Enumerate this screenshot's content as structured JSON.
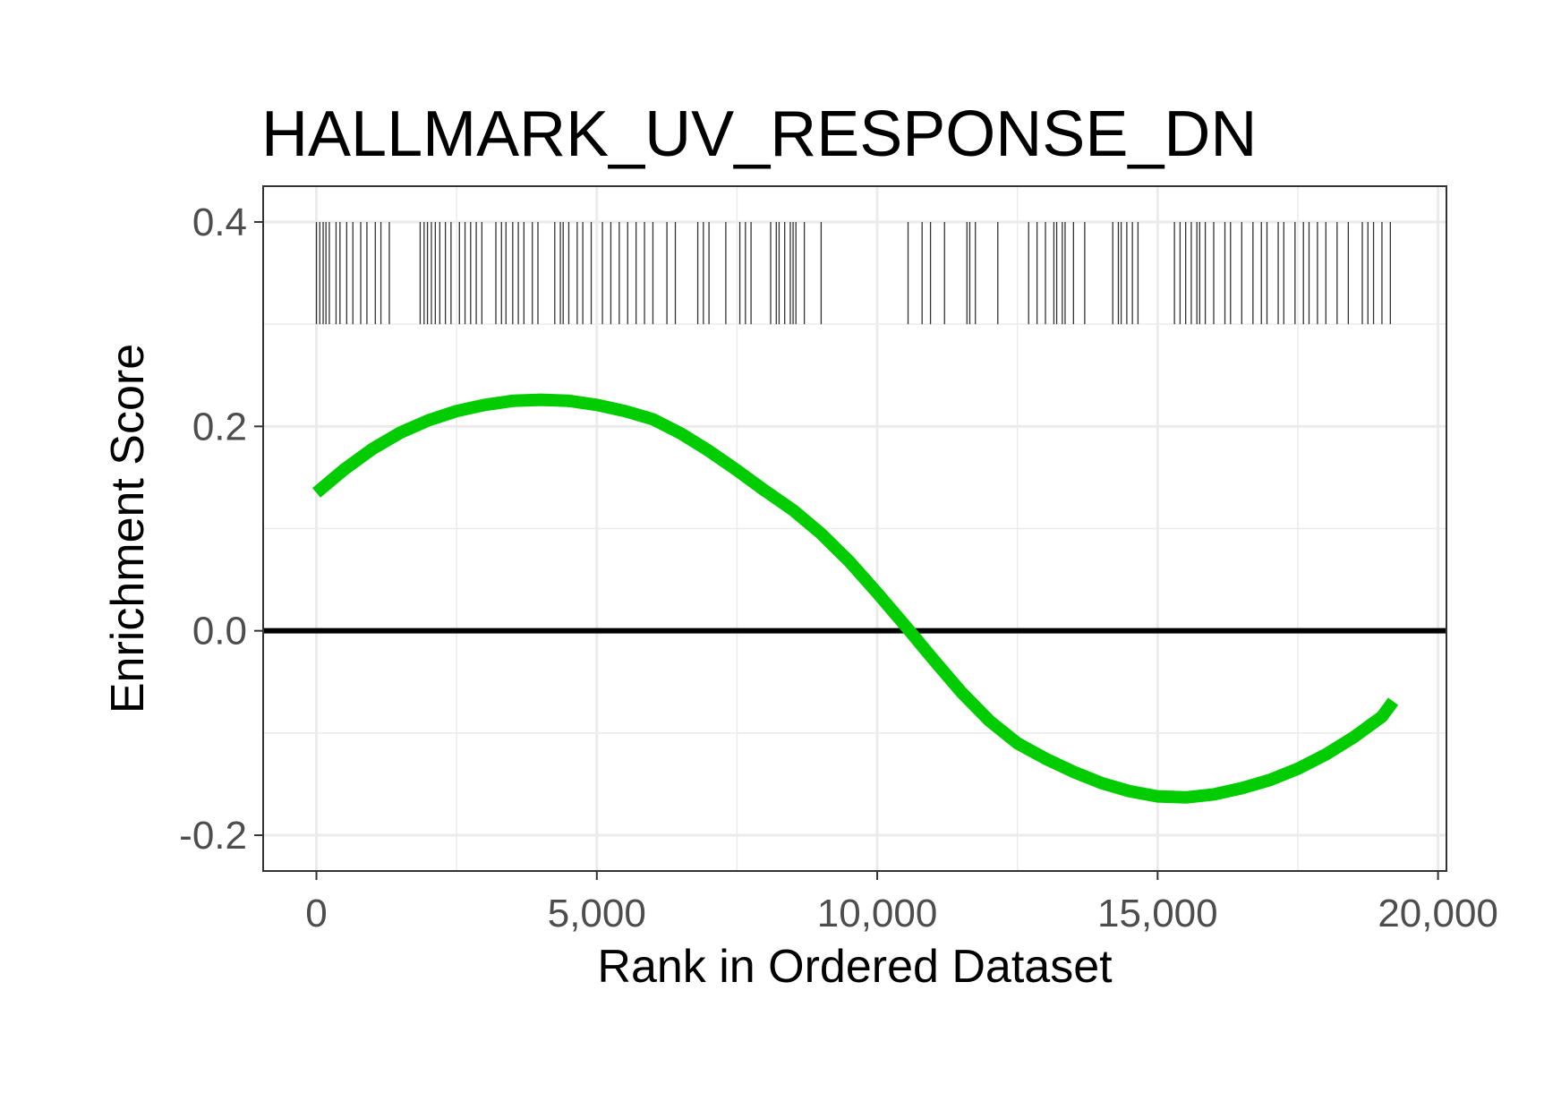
{
  "chart_data": {
    "type": "line",
    "title": "HALLMARK_UV_RESPONSE_DN",
    "xlabel": "Rank in Ordered Dataset",
    "ylabel": "Enrichment Score",
    "xlim": [
      -950,
      20150
    ],
    "ylim": [
      -0.235,
      0.435
    ],
    "x_ticks": [
      0,
      5000,
      10000,
      15000,
      20000
    ],
    "x_tick_labels": [
      "0",
      "5,000",
      "10,000",
      "15,000",
      "20,000"
    ],
    "y_ticks": [
      -0.2,
      0.0,
      0.2,
      0.4
    ],
    "y_tick_labels": [
      "-0.2",
      "0.0",
      "0.2",
      "0.4"
    ],
    "grid": true,
    "legend": "none",
    "reference_line_y": 0,
    "colors": {
      "curve": "#00cc00",
      "reference_line": "#000000",
      "gene_ticks": "#333333",
      "grid": "#ebebeb",
      "panel_border": "#333333"
    },
    "series": [
      {
        "x": [
          0,
          500,
          1000,
          1500,
          2000,
          2500,
          3000,
          3500,
          4000,
          4500,
          5000,
          5500,
          6000,
          6500,
          7000,
          7500,
          8000,
          8500,
          9000,
          9500,
          10000,
          10500,
          11000,
          11500,
          12000,
          12500,
          13000,
          13500,
          14000,
          14500,
          15000,
          15500,
          16000,
          16500,
          17000,
          17500,
          18000,
          18500,
          19000,
          19200
        ],
        "y": [
          0.135,
          0.158,
          0.178,
          0.194,
          0.206,
          0.215,
          0.221,
          0.225,
          0.226,
          0.225,
          0.221,
          0.215,
          0.207,
          0.193,
          0.176,
          0.157,
          0.137,
          0.118,
          0.095,
          0.068,
          0.037,
          0.005,
          -0.028,
          -0.06,
          -0.088,
          -0.11,
          -0.125,
          -0.138,
          -0.149,
          -0.157,
          -0.162,
          -0.163,
          -0.16,
          -0.154,
          -0.146,
          -0.135,
          -0.121,
          -0.104,
          -0.084,
          -0.069
        ]
      }
    ],
    "gene_set_ranks": {
      "y_range": [
        0.3,
        0.4
      ],
      "ranks": [
        0,
        60,
        120,
        170,
        230,
        350,
        420,
        540,
        650,
        790,
        900,
        1050,
        1150,
        1300,
        1850,
        1920,
        1980,
        2050,
        2120,
        2200,
        2300,
        2400,
        2550,
        2650,
        2750,
        2850,
        2950,
        3200,
        3300,
        3380,
        3500,
        3600,
        3700,
        3850,
        3950,
        4250,
        4350,
        4400,
        4500,
        4650,
        4750,
        4900,
        5100,
        5250,
        5400,
        5550,
        5700,
        5850,
        6000,
        6250,
        6400,
        6800,
        6900,
        7000,
        7300,
        7550,
        7650,
        7750,
        8100,
        8200,
        8250,
        8350,
        8450,
        8500,
        8550,
        8700,
        9000,
        10550,
        10800,
        10950,
        11200,
        11600,
        11650,
        11750,
        12150,
        12700,
        12850,
        13000,
        13150,
        13200,
        13300,
        13350,
        13500,
        13700,
        14200,
        14300,
        14350,
        14450,
        14550,
        14650,
        15300,
        15400,
        15500,
        15600,
        15700,
        15750,
        15850,
        16000,
        16200,
        16300,
        16500,
        16700,
        16850,
        16950,
        17150,
        17250,
        17450,
        17600,
        17700,
        17850,
        18000,
        18200,
        18400,
        18650,
        18750,
        18850,
        19000,
        19150
      ]
    }
  }
}
